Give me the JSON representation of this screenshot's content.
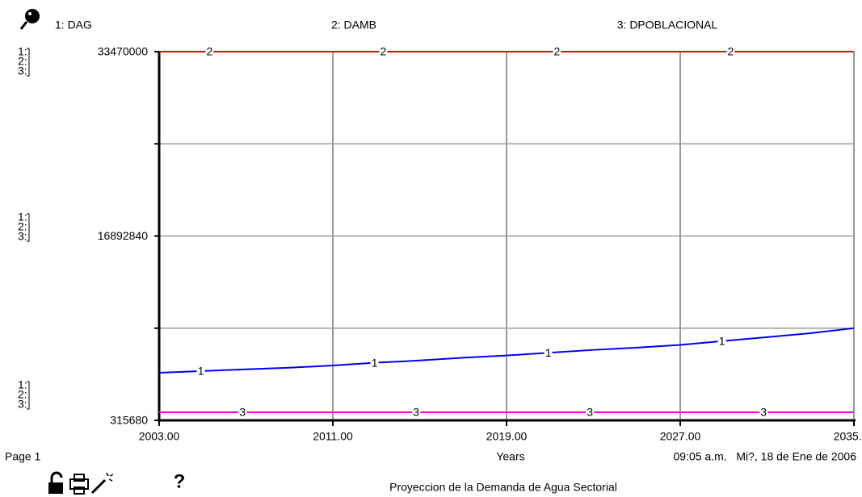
{
  "chart_data": {
    "type": "line",
    "title": "Proyeccion de la Demanda de Agua Sectorial",
    "page": "Page 1",
    "timestamp": "09:05 a.m.   Mi?, 18 de Ene de 2006",
    "x_label": "Years",
    "help_icon": "?",
    "axis_keys": [
      "1:",
      "2:",
      "3:"
    ],
    "x": [
      2003,
      2005,
      2007,
      2009,
      2011,
      2013,
      2015,
      2017,
      2019,
      2021,
      2023,
      2025,
      2027,
      2029,
      2031,
      2033,
      2035
    ],
    "series": [
      {
        "name": "1: DAG",
        "marker": "1",
        "color": "#0000ee",
        "values": [
          4600000,
          4750000,
          4900000,
          5050000,
          5250000,
          5500000,
          5700000,
          5950000,
          6150000,
          6400000,
          6650000,
          6850000,
          7100000,
          7450000,
          7800000,
          8150000,
          8600000
        ]
      },
      {
        "name": "2: DAMB",
        "marker": "2",
        "color": "#ee0000",
        "values": [
          33470000,
          33470000,
          33470000,
          33470000,
          33470000,
          33470000,
          33470000,
          33470000,
          33470000,
          33470000,
          33470000,
          33470000,
          33470000,
          33470000,
          33470000,
          33470000,
          33470000
        ]
      },
      {
        "name": "3: DPOBLACIONAL",
        "marker": "3",
        "color": "#ee00ee",
        "values": [
          1040000,
          1040000,
          1040000,
          1040000,
          1040000,
          1040000,
          1040000,
          1040000,
          1040000,
          1040000,
          1040000,
          1040000,
          1040000,
          1040000,
          1040000,
          1040000,
          1040000
        ]
      }
    ],
    "xlim": [
      2003,
      2035
    ],
    "xticks": [
      {
        "value": 2003,
        "label": "2003.00"
      },
      {
        "value": 2011,
        "label": "2011.00"
      },
      {
        "value": 2019,
        "label": "2019.00"
      },
      {
        "value": 2027,
        "label": "2027.00"
      },
      {
        "value": 2035,
        "label": "2035.00"
      }
    ],
    "ylim": [
      315680,
      33470000
    ],
    "yticks": [
      315680,
      16892840,
      33470000
    ],
    "grid": true
  }
}
